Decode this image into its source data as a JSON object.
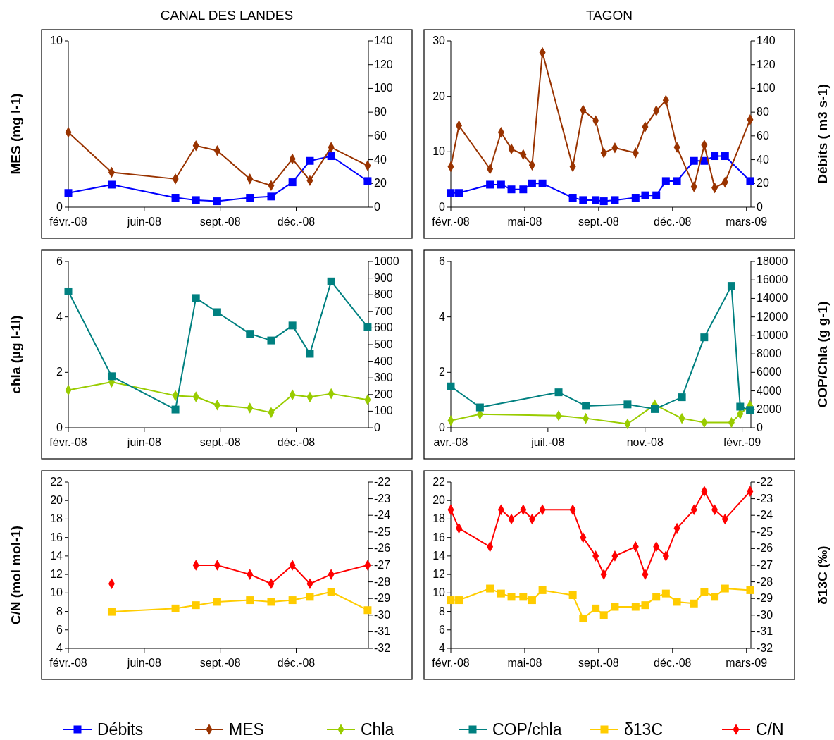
{
  "chart_data": [
    {
      "type": "line",
      "title": "CANAL DES LANDES",
      "ylabel": "MES (mg l-1)",
      "x": [
        "2008-02-25",
        "2008-04-22",
        "2008-07-15",
        "2008-08-11",
        "2008-09-08",
        "2008-10-21",
        "2008-11-18",
        "2008-12-16",
        "2009-01-08",
        "2009-02-05",
        "2009-03-25"
      ],
      "xlim": [
        "2008-02-25",
        "2009-03-26"
      ],
      "xticks": [
        {
          "value": "2008-02-25",
          "label": "févr.-08"
        },
        {
          "value": "2008-06-04",
          "label": "juin-08"
        },
        {
          "value": "2008-09-12",
          "label": "sept.-08"
        },
        {
          "value": "2008-12-21",
          "label": "déc.-08"
        }
      ],
      "ylim": [
        0,
        10
      ],
      "yticks": [
        0,
        10
      ],
      "y2lim": [
        0,
        140
      ],
      "y2ticks": [
        0,
        20,
        40,
        60,
        80,
        100,
        120,
        140
      ],
      "legend": "bottom",
      "series": [
        {
          "name": "Débits",
          "color": "#0000ff",
          "axis": "y2",
          "marker": "square",
          "values": [
            12,
            19,
            8,
            6,
            5,
            8,
            9,
            21,
            39,
            43,
            22
          ]
        },
        {
          "name": "MES",
          "color": "#993300",
          "marker": "diamond",
          "values": [
            4.5,
            2.1,
            1.7,
            3.7,
            3.4,
            1.7,
            1.3,
            2.9,
            1.6,
            3.6,
            2.5
          ]
        }
      ]
    },
    {
      "type": "line",
      "title": "TAGON",
      "y2label": "Débits ( m3 s-1)",
      "x": [
        "2008-02-16",
        "2008-02-27",
        "2008-04-09",
        "2008-04-24",
        "2008-05-08",
        "2008-05-24",
        "2008-06-05",
        "2008-06-19",
        "2008-07-30",
        "2008-08-13",
        "2008-08-30",
        "2008-09-10",
        "2008-09-25",
        "2008-10-23",
        "2008-11-05",
        "2008-11-20",
        "2008-12-03",
        "2008-12-18",
        "2009-01-10",
        "2009-01-24",
        "2009-02-07",
        "2009-02-21",
        "2009-03-27"
      ],
      "xlim": [
        "2008-02-16",
        "2009-03-28"
      ],
      "xticks": [
        {
          "value": "2008-02-16",
          "label": "févr.-08"
        },
        {
          "value": "2008-05-26",
          "label": "mai-08"
        },
        {
          "value": "2008-09-03",
          "label": "sept.-08"
        },
        {
          "value": "2008-12-12",
          "label": "déc.-08"
        },
        {
          "value": "2009-03-22",
          "label": "mars-09"
        }
      ],
      "ylim": [
        0,
        30
      ],
      "yticks": [
        0,
        10,
        20,
        30
      ],
      "y2lim": [
        0,
        140
      ],
      "y2ticks": [
        0,
        20,
        40,
        60,
        80,
        100,
        120,
        140
      ],
      "legend": "bottom",
      "series": [
        {
          "name": "Débits",
          "color": "#0000ff",
          "axis": "y2",
          "marker": "square",
          "values": [
            12,
            12,
            19,
            19,
            15,
            15,
            20,
            20,
            8,
            6,
            6,
            5,
            6,
            8,
            10,
            10,
            22,
            22,
            39,
            39,
            43,
            43,
            22
          ]
        },
        {
          "name": "MES",
          "color": "#993300",
          "marker": "diamond",
          "values": [
            7.3,
            14.7,
            6.9,
            13.5,
            10.5,
            9.5,
            7.6,
            27.9,
            7.3,
            17.5,
            15.6,
            9.8,
            10.7,
            9.8,
            14.5,
            17.4,
            19.3,
            10.8,
            3.7,
            11.2,
            3.5,
            4.5,
            15.8
          ]
        }
      ]
    },
    {
      "type": "line",
      "ylabel": "chla (µg l-1l)",
      "x": [
        "2008-02-25",
        "2008-04-22",
        "2008-07-15",
        "2008-08-11",
        "2008-09-08",
        "2008-10-21",
        "2008-11-18",
        "2008-12-16",
        "2009-01-08",
        "2009-02-05",
        "2009-03-25"
      ],
      "xlim": [
        "2008-02-25",
        "2009-03-26"
      ],
      "xticks": [
        {
          "value": "2008-02-25",
          "label": "févr.-08"
        },
        {
          "value": "2008-06-04",
          "label": "juin-08"
        },
        {
          "value": "2008-09-12",
          "label": "sept.-08"
        },
        {
          "value": "2008-12-21",
          "label": "déc.-08"
        }
      ],
      "ylim": [
        0,
        6
      ],
      "yticks": [
        0,
        2,
        4,
        6
      ],
      "y2lim": [
        0,
        1000
      ],
      "y2ticks": [
        0,
        100,
        200,
        300,
        400,
        500,
        600,
        700,
        800,
        900,
        1000
      ],
      "legend": "bottom",
      "series": [
        {
          "name": "Chla",
          "color": "#99cc00",
          "marker": "diamond",
          "values": [
            1.36,
            1.65,
            1.16,
            1.12,
            0.82,
            0.71,
            0.55,
            1.19,
            1.11,
            1.23,
            1.01
          ]
        },
        {
          "name": "COP/chla",
          "color": "#008080",
          "axis": "y2",
          "marker": "square",
          "values": [
            820,
            310,
            110,
            780,
            695,
            565,
            525,
            615,
            445,
            880,
            605
          ]
        }
      ]
    },
    {
      "type": "line",
      "y2label": "COP/Chla (g g-1)",
      "x": [
        "2008-04-16",
        "2008-05-16",
        "2008-08-05",
        "2008-09-02",
        "2008-10-15",
        "2008-11-12",
        "2008-12-10",
        "2009-01-02",
        "2009-01-30",
        "2009-02-08",
        "2009-02-18"
      ],
      "xlim": [
        "2008-04-16",
        "2009-02-19"
      ],
      "xticks": [
        {
          "value": "2008-04-16",
          "label": "avr.-08"
        },
        {
          "value": "2008-07-25",
          "label": "juil.-08"
        },
        {
          "value": "2008-11-02",
          "label": "nov.-08"
        },
        {
          "value": "2009-02-10",
          "label": "févr.-09"
        }
      ],
      "ylim": [
        0,
        6
      ],
      "yticks": [
        0,
        2,
        4,
        6
      ],
      "y2lim": [
        0,
        18000
      ],
      "y2ticks": [
        0,
        2000,
        4000,
        6000,
        8000,
        10000,
        12000,
        14000,
        16000,
        18000
      ],
      "legend": "bottom",
      "series": [
        {
          "name": "Chla",
          "color": "#99cc00",
          "marker": "diamond",
          "values": [
            0.26,
            0.49,
            0.44,
            0.34,
            0.14,
            0.83,
            0.34,
            0.19,
            0.19,
            0.5,
            0.8
          ]
        },
        {
          "name": "COP/chla",
          "color": "#008080",
          "axis": "y2",
          "marker": "square",
          "values": [
            4480,
            2210,
            3840,
            2370,
            2530,
            2030,
            3310,
            9790,
            15360,
            2290,
            1920
          ]
        }
      ]
    },
    {
      "type": "line",
      "ylabel": "C/N (mol mol-1)",
      "x": [
        "2008-04-22",
        "2008-07-15",
        "2008-08-11",
        "2008-09-08",
        "2008-10-21",
        "2008-11-18",
        "2008-12-16",
        "2009-01-08",
        "2009-02-05",
        "2009-03-25"
      ],
      "xlim": [
        "2008-02-25",
        "2009-03-26"
      ],
      "xticks": [
        {
          "value": "2008-02-25",
          "label": "févr.-08"
        },
        {
          "value": "2008-06-04",
          "label": "juin-08"
        },
        {
          "value": "2008-09-12",
          "label": "sept.-08"
        },
        {
          "value": "2008-12-21",
          "label": "déc.-08"
        }
      ],
      "ylim": [
        4,
        22
      ],
      "yticks": [
        4,
        6,
        8,
        10,
        12,
        14,
        16,
        18,
        20,
        22
      ],
      "y2lim": [
        -32,
        -22
      ],
      "y2ticks": [
        -32,
        -31,
        -30,
        -29,
        -28,
        -27,
        -26,
        -25,
        -24,
        -23,
        -22
      ],
      "legend": "bottom",
      "series": [
        {
          "name": "δ13C",
          "color": "#ffcc00",
          "axis": "y2",
          "marker": "square",
          "values": [
            -29.8,
            -29.6,
            -29.4,
            -29.2,
            -29.1,
            -29.2,
            -29.1,
            -28.9,
            -28.6,
            -29.7
          ]
        },
        {
          "name": "C/N",
          "color": "#ff0000",
          "marker": "diamond",
          "values": [
            11,
            null,
            13,
            13,
            12,
            11,
            13,
            11,
            12,
            13
          ]
        }
      ]
    },
    {
      "type": "line",
      "y2label": "δ13C (‰)",
      "x": [
        "2008-02-16",
        "2008-02-27",
        "2008-04-09",
        "2008-04-24",
        "2008-05-08",
        "2008-05-24",
        "2008-06-05",
        "2008-06-19",
        "2008-07-30",
        "2008-08-13",
        "2008-08-30",
        "2008-09-10",
        "2008-09-25",
        "2008-10-23",
        "2008-11-05",
        "2008-11-20",
        "2008-12-03",
        "2008-12-18",
        "2009-01-10",
        "2009-01-24",
        "2009-02-07",
        "2009-02-21",
        "2009-03-27"
      ],
      "xlim": [
        "2008-02-16",
        "2009-03-28"
      ],
      "xticks": [
        {
          "value": "2008-02-16",
          "label": "févr.-08"
        },
        {
          "value": "2008-05-26",
          "label": "mai-08"
        },
        {
          "value": "2008-09-03",
          "label": "sept.-08"
        },
        {
          "value": "2008-12-12",
          "label": "déc.-08"
        },
        {
          "value": "2009-03-22",
          "label": "mars-09"
        }
      ],
      "ylim": [
        4,
        22
      ],
      "yticks": [
        4,
        6,
        8,
        10,
        12,
        14,
        16,
        18,
        20,
        22
      ],
      "y2lim": [
        -32,
        -22
      ],
      "y2ticks": [
        -32,
        -31,
        -30,
        -29,
        -28,
        -27,
        -26,
        -25,
        -24,
        -23,
        -22
      ],
      "legend": "bottom",
      "series": [
        {
          "name": "δ13C",
          "color": "#ffcc00",
          "axis": "y2",
          "marker": "square",
          "values": [
            -29.1,
            -29.1,
            -28.4,
            -28.7,
            -28.9,
            -28.9,
            -29.1,
            -28.5,
            -28.8,
            -30.2,
            -29.6,
            -30.0,
            -29.5,
            -29.5,
            -29.4,
            -28.9,
            -28.7,
            -29.2,
            -29.3,
            -28.6,
            -28.9,
            -28.4,
            -28.5
          ]
        },
        {
          "name": "C/N",
          "color": "#ff0000",
          "marker": "diamond",
          "values": [
            19,
            17,
            15,
            19,
            18,
            19,
            18,
            19,
            19,
            16,
            14,
            12,
            14,
            15,
            12,
            15,
            14,
            17,
            19,
            21,
            19,
            18,
            21
          ]
        }
      ]
    }
  ]
}
